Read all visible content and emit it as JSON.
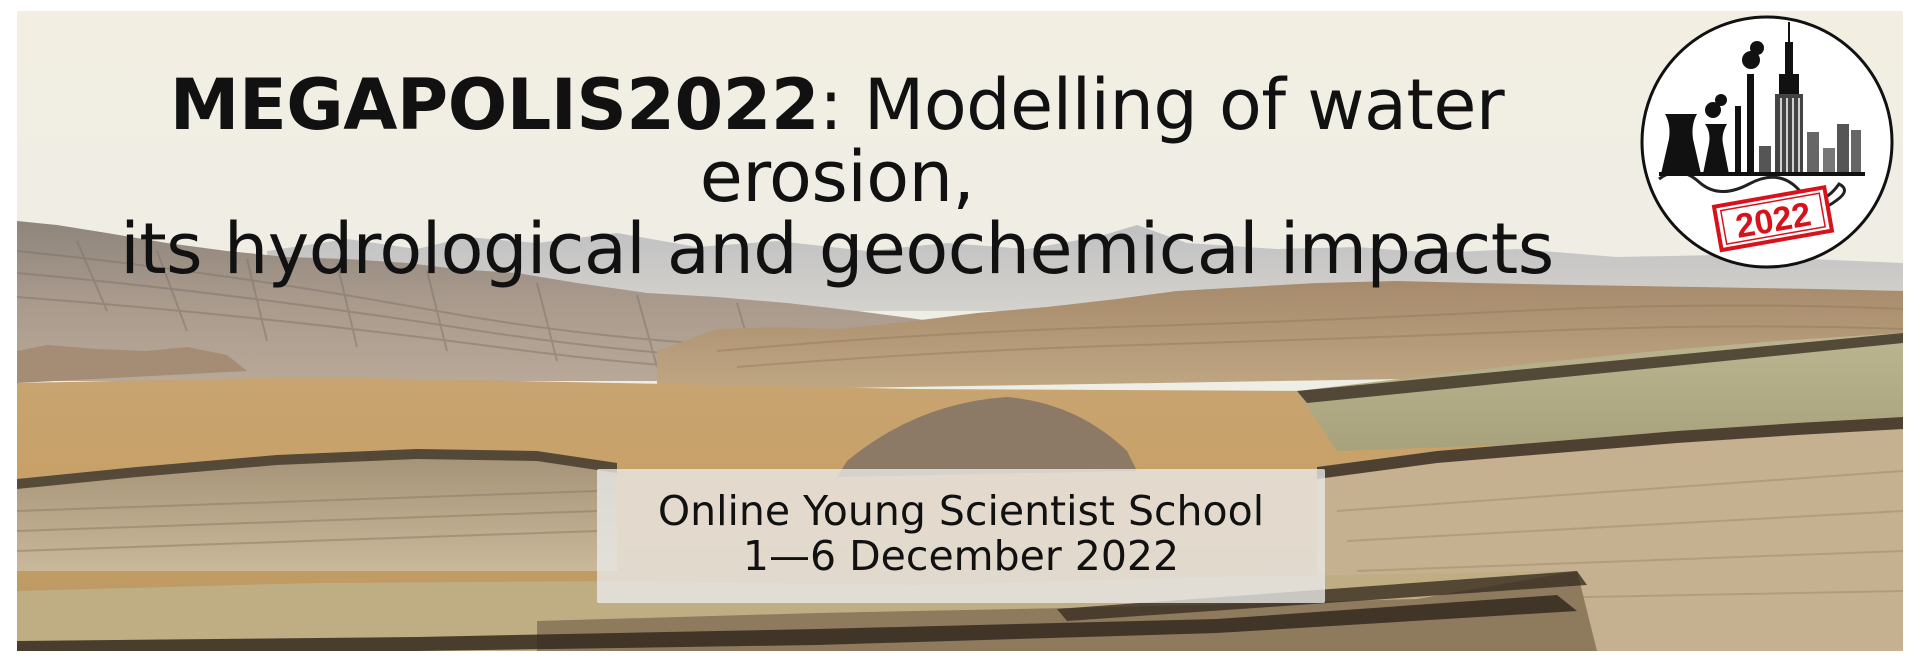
{
  "headline": {
    "strong": "MEGAPOLIS2022",
    "rest_line1": ": Modelling of water erosion,",
    "line2": "its hydrological and geochemical impacts"
  },
  "info": {
    "line1": "Online Young Scientist School",
    "line2": "1—6 December 2022"
  },
  "logo": {
    "year": "2022",
    "stamp_color": "#d8121b"
  },
  "scene": {
    "description_icon": "badlands-landscape"
  }
}
